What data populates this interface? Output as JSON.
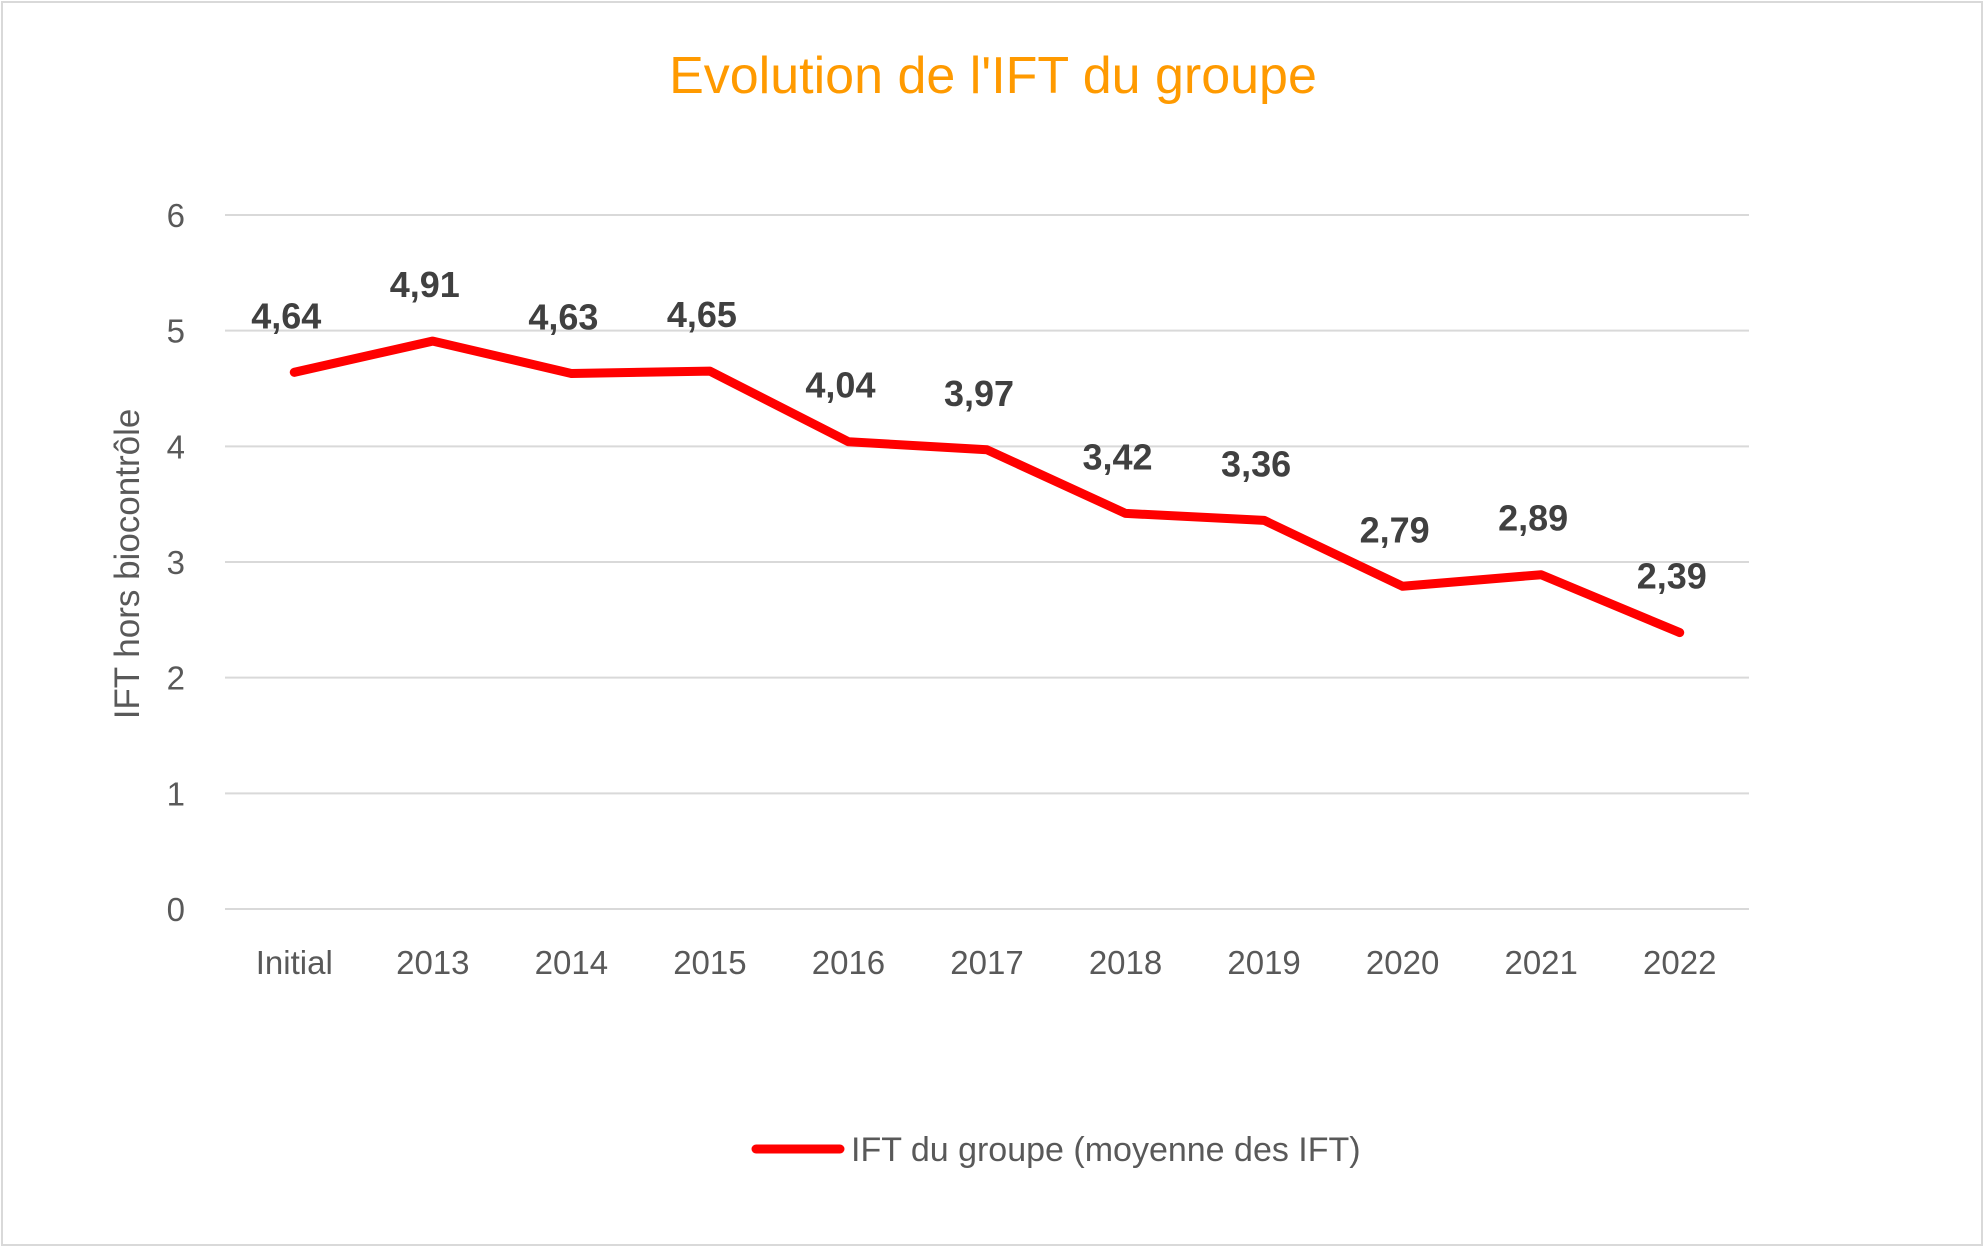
{
  "chart_data": {
    "type": "line",
    "title": "Evolution de l'IFT du groupe",
    "xlabel": "",
    "ylabel": "IFT hors biocontrôle",
    "categories": [
      "Initial",
      "2013",
      "2014",
      "2015",
      "2016",
      "2017",
      "2018",
      "2019",
      "2020",
      "2021",
      "2022"
    ],
    "series": [
      {
        "name": "IFT du groupe (moyenne des IFT)",
        "values": [
          4.64,
          4.91,
          4.63,
          4.65,
          4.04,
          3.97,
          3.42,
          3.36,
          2.79,
          2.89,
          2.39
        ],
        "labels": [
          "4,64",
          "4,91",
          "4,63",
          "4,65",
          "4,04",
          "3,97",
          "3,42",
          "3,36",
          "2,79",
          "2,89",
          "2,39"
        ],
        "color": "#ff0000"
      }
    ],
    "ylim": [
      0,
      6
    ],
    "yticks": [
      "0",
      "1",
      "2",
      "3",
      "4",
      "5",
      "6"
    ],
    "grid": true,
    "legend_position": "bottom",
    "colors": {
      "title": "#ff9a00",
      "grid": "#d9d9d9",
      "text": "#595959",
      "data_label": "#404040"
    }
  }
}
